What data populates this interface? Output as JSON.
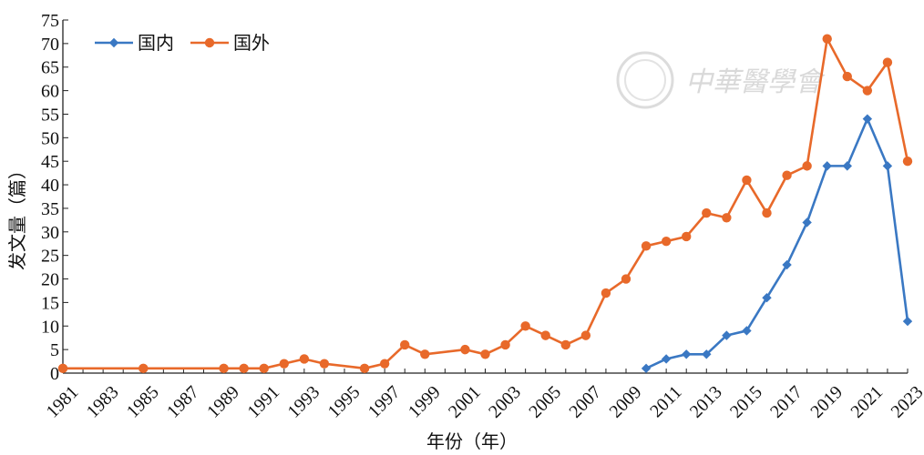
{
  "chart_data": {
    "type": "line",
    "xlabel": "年份（年）",
    "ylabel": "发文量（篇）",
    "xlim": [
      1981,
      2023
    ],
    "ylim": [
      0,
      75
    ],
    "y_ticks": [
      0,
      5,
      10,
      15,
      20,
      25,
      30,
      35,
      40,
      45,
      50,
      55,
      60,
      65,
      70,
      75
    ],
    "x_ticks": [
      1981,
      1983,
      1985,
      1987,
      1989,
      1991,
      1993,
      1995,
      1997,
      1999,
      2001,
      2003,
      2005,
      2007,
      2009,
      2011,
      2013,
      2015,
      2017,
      2019,
      2021,
      2023
    ],
    "grid": false,
    "legend_position": "top-left",
    "series": [
      {
        "name": "国内",
        "color": "#3a78c3",
        "marker": "diamond",
        "x": [
          2010,
          2011,
          2012,
          2013,
          2014,
          2015,
          2016,
          2017,
          2018,
          2019,
          2020,
          2021,
          2022,
          2023
        ],
        "y": [
          1,
          3,
          4,
          4,
          8,
          9,
          16,
          23,
          32,
          44,
          44,
          54,
          44,
          11
        ]
      },
      {
        "name": "国外",
        "color": "#e8692a",
        "marker": "circle",
        "x": [
          1981,
          1985,
          1989,
          1990,
          1991,
          1992,
          1993,
          1994,
          1996,
          1997,
          1998,
          1999,
          2001,
          2002,
          2003,
          2004,
          2005,
          2006,
          2007,
          2008,
          2009,
          2010,
          2011,
          2012,
          2013,
          2014,
          2015,
          2016,
          2017,
          2018,
          2019,
          2020,
          2021,
          2022,
          2023
        ],
        "y": [
          1,
          1,
          1,
          1,
          1,
          2,
          3,
          2,
          1,
          2,
          6,
          4,
          5,
          4,
          6,
          10,
          8,
          6,
          8,
          17,
          20,
          27,
          28,
          29,
          34,
          33,
          41,
          34,
          42,
          44,
          71,
          63,
          60,
          66,
          45
        ]
      }
    ]
  },
  "watermark": {
    "text": "中華醫學會",
    "color": "#d9d9d9"
  }
}
